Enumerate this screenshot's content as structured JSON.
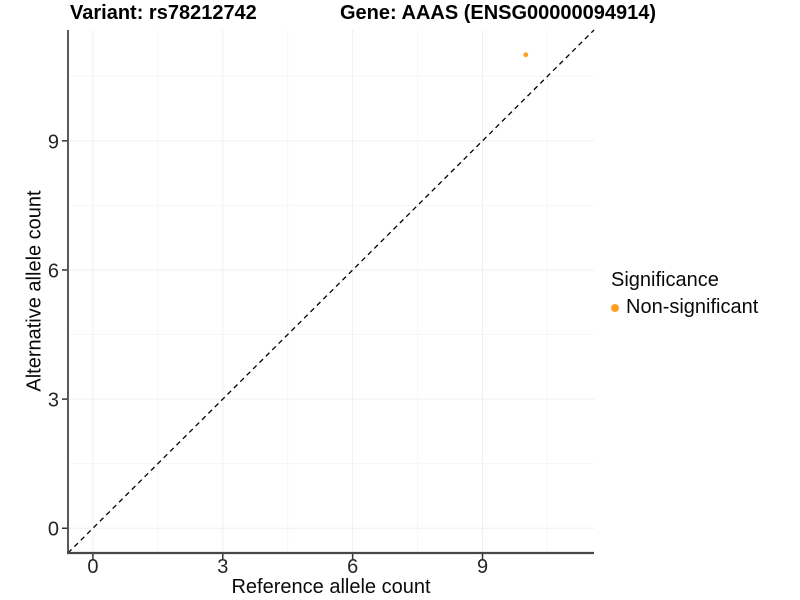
{
  "titles": {
    "variant": "Variant: rs78212742",
    "gene": "Gene: AAAS (ENSG00000094914)"
  },
  "axes": {
    "x_title": "Reference allele count",
    "y_title": "Alternative allele count"
  },
  "legend": {
    "title": "Significance",
    "items": [
      {
        "label": "Non-significant",
        "color": "#FFA11E",
        "marker": "dot"
      }
    ]
  },
  "chart_data": {
    "type": "scatter",
    "title": "Variant: rs78212742 — Gene: AAAS (ENSG00000094914)",
    "xlabel": "Reference allele count",
    "ylabel": "Alternative allele count",
    "xlim": [
      -0.575,
      11.575
    ],
    "ylim": [
      -0.575,
      11.575
    ],
    "xticks": [
      0,
      3,
      6,
      9
    ],
    "yticks": [
      0,
      3,
      6,
      9
    ],
    "xminor": [
      1.5,
      4.5,
      7.5,
      10.5
    ],
    "yminor": [
      1.5,
      4.5,
      7.5,
      10.5
    ],
    "grid": "major+minor",
    "legend_position": "right",
    "series": [
      {
        "name": "Non-significant",
        "color": "#FFA11E",
        "marker_radius": 2.4,
        "points": [
          {
            "x": 10,
            "y": 11
          }
        ]
      }
    ],
    "reference_line": {
      "kind": "identity",
      "dash": "dashed",
      "color": "#000000"
    }
  },
  "colors": {
    "point_orange": "#FFA11E",
    "grid_major": "#EFEFEF",
    "grid_minor": "#F6F6F6",
    "axis_line": "#474747",
    "tick": "#333333",
    "text": "#0a0a0a"
  }
}
